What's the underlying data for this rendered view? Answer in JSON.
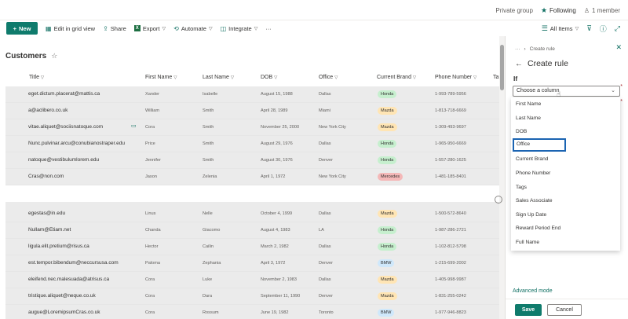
{
  "topbar": {
    "privacy": "Private group",
    "following": "Following",
    "members": "1 member"
  },
  "commands": {
    "new": "New",
    "edit_grid": "Edit in grid view",
    "share": "Share",
    "export": "Export",
    "automate": "Automate",
    "integrate": "Integrate",
    "more": "···"
  },
  "view": {
    "label": "All Items"
  },
  "list": {
    "title": "Customers"
  },
  "columns": [
    "Title",
    "First Name",
    "Last Name",
    "DOB",
    "Office",
    "Current Brand",
    "Phone Number",
    "Ta"
  ],
  "rows": [
    {
      "email": "eget.dictum.placerat@mattis.ca",
      "first": "Xander",
      "last": "Isabelle",
      "dob": "August 15, 1988",
      "office": "Dallas",
      "brand": "Honda",
      "phone": "1-993-789-5956"
    },
    {
      "email": "a@aclibero.co.uk",
      "first": "William",
      "last": "Smith",
      "dob": "April 28, 1989",
      "office": "Miami",
      "brand": "Mazda",
      "phone": "1-813-718-6669"
    },
    {
      "email": "vitae.aliquet@sociisnatoque.com",
      "first": "Cora",
      "last": "Smith",
      "dob": "November 25, 2000",
      "office": "New York City",
      "brand": "Mazda",
      "phone": "1-309-493-9697"
    },
    {
      "email": "Nunc.pulvinar.arcu@conubianostraper.edu",
      "first": "Price",
      "last": "Smith",
      "dob": "August 29, 1976",
      "office": "Dallas",
      "brand": "Honda",
      "phone": "1-965-950-6669"
    },
    {
      "email": "natoque@vestibulumlorem.edu",
      "first": "Jennifer",
      "last": "Smith",
      "dob": "August 30, 1976",
      "office": "Denver",
      "brand": "Honda",
      "phone": "1-557-280-1625"
    },
    {
      "email": "Cras@non.com",
      "first": "Jason",
      "last": "Zelenia",
      "dob": "April 1, 1972",
      "office": "New York City",
      "brand": "Mercedes",
      "phone": "1-481-185-8401"
    },
    {
      "email": "egestas@in.edu",
      "first": "Linus",
      "last": "Nelle",
      "dob": "October 4, 1999",
      "office": "Dallas",
      "brand": "Mazda",
      "phone": "1-500-572-8640"
    },
    {
      "email": "Nullam@Etiam.net",
      "first": "Chanda",
      "last": "Giacomo",
      "dob": "August 4, 1983",
      "office": "LA",
      "brand": "Honda",
      "phone": "1-987-286-2721"
    },
    {
      "email": "ligula.elit.pretium@risus.ca",
      "first": "Hector",
      "last": "Cailin",
      "dob": "March 2, 1982",
      "office": "Dallas",
      "brand": "Honda",
      "phone": "1-102-812-5798"
    },
    {
      "email": "est.tempor.bibendum@neccursusa.com",
      "first": "Paloma",
      "last": "Zephania",
      "dob": "April 3, 1972",
      "office": "Denver",
      "brand": "BMW",
      "phone": "1-215-699-2002"
    },
    {
      "email": "eleifend.nec.malesuada@atrisus.ca",
      "first": "Cora",
      "last": "Luke",
      "dob": "November 2, 1983",
      "office": "Dallas",
      "brand": "Mazda",
      "phone": "1-405-998-9987"
    },
    {
      "email": "tristique.aliquet@neque.co.uk",
      "first": "Cora",
      "last": "Dara",
      "dob": "September 11, 1990",
      "office": "Denver",
      "brand": "Mazda",
      "phone": "1-831-255-0242"
    },
    {
      "email": "augue@LoremipsumCras.co.uk",
      "first": "Cora",
      "last": "Rossum",
      "dob": "June 19, 1982",
      "office": "Toronto",
      "brand": "BMW",
      "phone": "1-977-946-8823"
    }
  ],
  "panel": {
    "crumb_more": "···",
    "crumb": "Create rule",
    "title": "Create rule",
    "if_label": "If",
    "select_placeholder": "Choose a column",
    "options": [
      "First Name",
      "Last Name",
      "DOB",
      "Office",
      "Current Brand",
      "Phone Number",
      "Tags",
      "Sales Associate",
      "Sign Up Date",
      "Reward Period End",
      "Full Name"
    ],
    "advanced": "Advanced mode",
    "save": "Save",
    "cancel": "Cancel"
  },
  "colors": {
    "accent": "#0f7b6c",
    "highlight": "#1b64b2",
    "honda": "#c6efce",
    "mazda": "#ffe5b4",
    "mercedes": "#f4b8b8",
    "bmw": "#cfe8fb"
  }
}
